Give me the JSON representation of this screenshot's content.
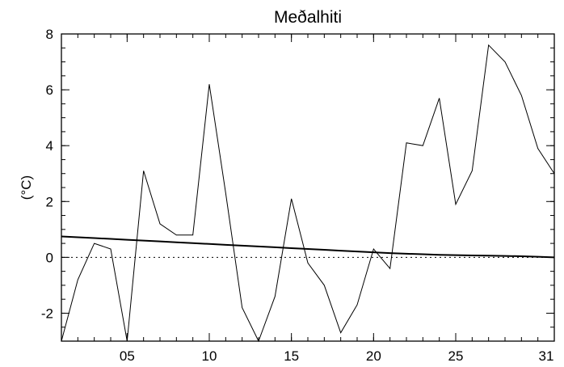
{
  "chart_data": {
    "type": "line",
    "title": "Meðalhiti",
    "xlabel": "",
    "ylabel": "(°C)",
    "xlim": [
      1,
      31
    ],
    "ylim": [
      -3,
      8
    ],
    "x_ticks": [
      {
        "value": 5,
        "label": "05"
      },
      {
        "value": 10,
        "label": "10"
      },
      {
        "value": 15,
        "label": "15"
      },
      {
        "value": 20,
        "label": "20"
      },
      {
        "value": 25,
        "label": "25"
      },
      {
        "value": 31,
        "label": "31"
      }
    ],
    "y_ticks": [
      {
        "value": -2,
        "label": "-2"
      },
      {
        "value": 0,
        "label": "0"
      },
      {
        "value": 2,
        "label": "2"
      },
      {
        "value": 4,
        "label": "4"
      },
      {
        "value": 6,
        "label": "6"
      },
      {
        "value": 8,
        "label": "8"
      }
    ],
    "x": [
      1,
      2,
      3,
      4,
      5,
      6,
      7,
      8,
      9,
      10,
      11,
      12,
      13,
      14,
      15,
      16,
      17,
      18,
      19,
      20,
      21,
      22,
      23,
      24,
      25,
      26,
      27,
      28,
      29,
      30,
      31
    ],
    "series": [
      {
        "values": [
          -3.0,
          -0.8,
          0.5,
          0.3,
          -3.0,
          3.1,
          1.2,
          0.8,
          0.8,
          6.2,
          2.3,
          -1.8,
          -3.0,
          -1.4,
          2.1,
          -0.2,
          -1.0,
          -2.7,
          -1.7,
          0.3,
          -0.4,
          4.1,
          4.0,
          5.7,
          1.9,
          3.1,
          7.6,
          7.0,
          5.8,
          3.9,
          3.0
        ],
        "color": "#000000",
        "stroke": "thin"
      },
      {
        "values": [
          0.75,
          0.72,
          0.69,
          0.66,
          0.63,
          0.6,
          0.57,
          0.54,
          0.51,
          0.48,
          0.45,
          0.42,
          0.39,
          0.36,
          0.33,
          0.3,
          0.27,
          0.24,
          0.21,
          0.18,
          0.15,
          0.13,
          0.11,
          0.09,
          0.08,
          0.07,
          0.06,
          0.05,
          0.04,
          0.02,
          0.0
        ],
        "color": "#000000",
        "stroke": "thick"
      }
    ],
    "reference_line": {
      "y": 0,
      "style": "dotted"
    },
    "grid": false,
    "legend": "none"
  }
}
